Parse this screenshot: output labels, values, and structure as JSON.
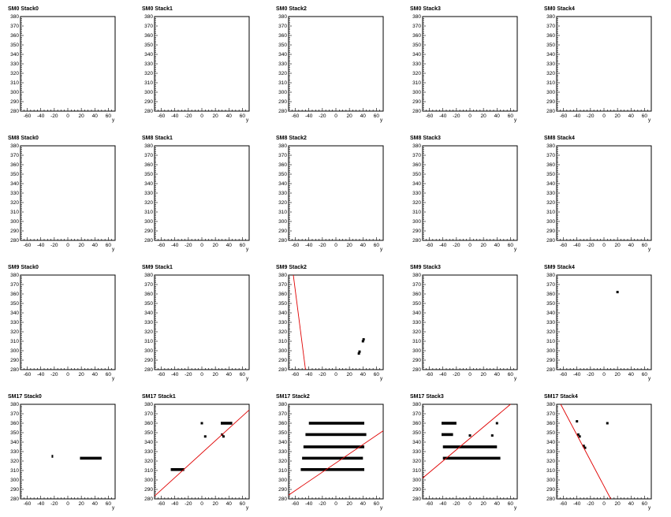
{
  "chart_data": {
    "type": "scatter",
    "xlabel": "y",
    "xlim": [
      -70,
      70
    ],
    "ylim": [
      280,
      380
    ],
    "xticks": [
      "-60",
      "-40",
      "-20",
      "0",
      "20",
      "40",
      "60"
    ],
    "yticks": [
      "280",
      "290",
      "300",
      "310",
      "320",
      "330",
      "340",
      "350",
      "360",
      "370",
      "380"
    ],
    "colors": {
      "points": "#000000",
      "fit_line": "#e00000",
      "frame": "#000000"
    },
    "panels": [
      {
        "title": "SM0 Stack0",
        "points": [],
        "line": null
      },
      {
        "title": "SM0 Stack1",
        "points": [],
        "line": null
      },
      {
        "title": "SM0 Stack2",
        "points": [],
        "line": null
      },
      {
        "title": "SM0 Stack3",
        "points": [],
        "line": null
      },
      {
        "title": "SM0 Stack4",
        "points": [],
        "line": null
      },
      {
        "title": "SM8 Stack0",
        "points": [],
        "line": null
      },
      {
        "title": "SM8 Stack1",
        "points": [],
        "line": null
      },
      {
        "title": "SM8 Stack2",
        "points": [],
        "line": null
      },
      {
        "title": "SM8 Stack3",
        "points": [],
        "line": null
      },
      {
        "title": "SM8 Stack4",
        "points": [],
        "line": null
      },
      {
        "title": "SM9 Stack0",
        "points": [],
        "line": null
      },
      {
        "title": "SM9 Stack1",
        "points": [],
        "line": null
      },
      {
        "title": "SM9 Stack2",
        "points": [
          [
            34,
            297
          ],
          [
            35,
            299
          ],
          [
            40,
            310
          ],
          [
            41,
            312
          ]
        ],
        "line": [
          [
            -63,
            380
          ],
          [
            -45,
            280
          ]
        ]
      },
      {
        "title": "SM9 Stack3",
        "points": [],
        "line": null
      },
      {
        "title": "SM9 Stack4",
        "points": [
          [
            20,
            362
          ]
        ],
        "line": null
      },
      {
        "title": "SM17 Stack0",
        "segments": [
          [
            -24,
            -22,
            325
          ],
          [
            18,
            50,
            323
          ]
        ],
        "points": [],
        "line": null
      },
      {
        "title": "SM17 Stack1",
        "segments": [
          [
            -46,
            -26,
            311
          ],
          [
            28,
            45,
            360
          ]
        ],
        "points": [
          [
            0,
            360
          ],
          [
            5,
            346
          ],
          [
            30,
            348
          ],
          [
            32,
            346
          ]
        ],
        "line": [
          [
            -70,
            283
          ],
          [
            70,
            374
          ]
        ]
      },
      {
        "title": "SM17 Stack2",
        "segments": [
          [
            -52,
            42,
            311
          ],
          [
            -50,
            40,
            323
          ],
          [
            -48,
            42,
            335
          ],
          [
            -45,
            45,
            348
          ],
          [
            -40,
            42,
            360
          ]
        ],
        "points": [],
        "line": [
          [
            -70,
            284
          ],
          [
            70,
            352
          ]
        ]
      },
      {
        "title": "SM17 Stack3",
        "segments": [
          [
            -42,
            -20,
            360
          ],
          [
            -42,
            -25,
            348
          ],
          [
            -40,
            40,
            335
          ],
          [
            -40,
            45,
            323
          ]
        ],
        "points": [
          [
            0,
            347
          ],
          [
            33,
            347
          ],
          [
            40,
            360
          ]
        ],
        "line": [
          [
            -70,
            302
          ],
          [
            60,
            380
          ]
        ]
      },
      {
        "title": "SM17 Stack4",
        "segments": [],
        "points": [
          [
            -40,
            362
          ],
          [
            -38,
            348
          ],
          [
            -36,
            346
          ],
          [
            -30,
            336
          ],
          [
            -28,
            334
          ],
          [
            5,
            360
          ]
        ],
        "line": [
          [
            -64,
            380
          ],
          [
            10,
            280
          ]
        ]
      }
    ]
  }
}
